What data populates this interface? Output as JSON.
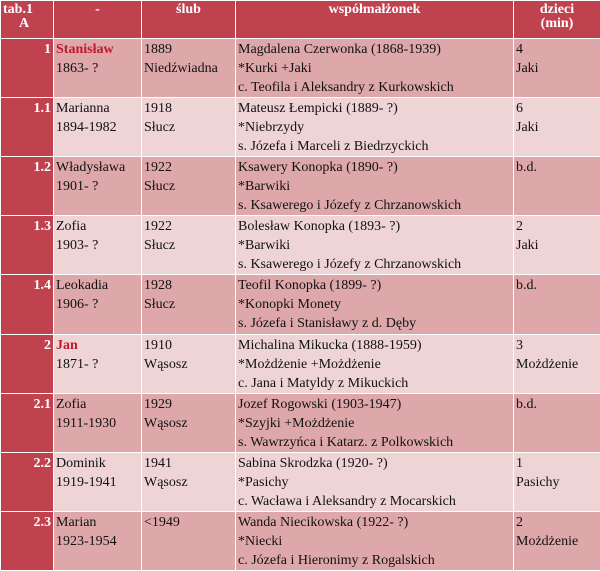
{
  "header": {
    "col0_line1": "tab.1",
    "col0_line2": "A",
    "col1": "-",
    "col2": "ślub",
    "col3": "współmałżonek",
    "col4_line1": "dzieci",
    "col4_line2": "(min)"
  },
  "rows": [
    {
      "num": "1",
      "name": "Stanisław",
      "name_highlight": true,
      "years": "1863- ?",
      "wedding_year": "1889",
      "wedding_place": "Niedźwiadna",
      "spouse_name": "Magdalena Czerwonka (1868-1939)",
      "spouse_places": "*Kurki +Jaki",
      "spouse_parents": "c. Teofila i Aleksandry z Kurkowskich",
      "children_count": "4",
      "children_place": "Jaki"
    },
    {
      "num": "1.1",
      "name": "Marianna",
      "name_highlight": false,
      "years": "1894-1982",
      "wedding_year": "1918",
      "wedding_place": "Słucz",
      "spouse_name": "Mateusz  Łempicki (1889- ?)",
      "spouse_places": "*Niebrzydy",
      "spouse_parents": "s. Józefa i Marceli z Biedrzyckich",
      "children_count": "6",
      "children_place": "Jaki"
    },
    {
      "num": "1.2",
      "name": "Władysława",
      "name_highlight": false,
      "years": "1901- ?",
      "wedding_year": "1922",
      "wedding_place": "Słucz",
      "spouse_name": "Ksawery Konopka (1890- ?)",
      "spouse_places": "*Barwiki",
      "spouse_parents": "s. Ksawerego i Józefy z Chrzanowskich",
      "children_count": "b.d.",
      "children_place": ""
    },
    {
      "num": "1.3",
      "name": "Zofia",
      "name_highlight": false,
      "years": "1903- ?",
      "wedding_year": "1922",
      "wedding_place": "Słucz",
      "spouse_name": "Bolesław Konopka (1893- ?)",
      "spouse_places": "*Barwiki",
      "spouse_parents": "s. Ksawerego i Józefy z Chrzanowskich",
      "children_count": "2",
      "children_place": "Jaki"
    },
    {
      "num": "1.4",
      "name": "Leokadia",
      "name_highlight": false,
      "years": "1906- ?",
      "wedding_year": "1928",
      "wedding_place": "Słucz",
      "spouse_name": "Teofil Konopka (1899- ?)",
      "spouse_places": "*Konopki Monety",
      "spouse_parents": "s. Józefa i Stanisławy z d. Dęby",
      "children_count": "b.d.",
      "children_place": ""
    },
    {
      "num": "2",
      "name": "Jan",
      "name_highlight": true,
      "years": "1871- ?",
      "wedding_year": "1910",
      "wedding_place": "Wąsosz",
      "spouse_name": "Michalina Mikucka (1888-1959)",
      "spouse_places": "*Możdżenie +Możdżenie",
      "spouse_parents": "c. Jana i Matyldy z Mikuckich",
      "children_count": "3",
      "children_place": "Możdżenie"
    },
    {
      "num": "2.1",
      "name": "Zofia",
      "name_highlight": false,
      "years": "1911-1930",
      "wedding_year": "1929",
      "wedding_place": "Wąsosz",
      "spouse_name": "Jozef Rogowski (1903-1947)",
      "spouse_places": "*Szyjki +Możdżenie",
      "spouse_parents": "s. Wawrzyńca i Katarz. z Polkowskich",
      "children_count": "b.d.",
      "children_place": ""
    },
    {
      "num": "2.2",
      "name": "Dominik",
      "name_highlight": false,
      "years": "1919-1941",
      "wedding_year": "1941",
      "wedding_place": "Wąsosz",
      "spouse_name": "Sabina Skrodzka (1920- ?)",
      "spouse_places": "*Pasichy",
      "spouse_parents": "c. Wacława i Aleksandry z Mocarskich",
      "children_count": "1",
      "children_place": "Pasichy"
    },
    {
      "num": "2.3",
      "name": "Marian",
      "name_highlight": false,
      "years": "1923-1954",
      "wedding_year": "<1949",
      "wedding_place": "",
      "spouse_name": "Wanda Niecikowska (1922- ?)",
      "spouse_places": "*Niecki",
      "spouse_parents": "c. Józefa i Hieronimy z Rogalskich",
      "children_count": "2",
      "children_place": "Możdżenie"
    }
  ],
  "colors": {
    "header_bg": "#c0424e",
    "row_odd_bg": "#dea8aa",
    "row_even_bg": "#efd4d5",
    "highlight_text": "#c0192a"
  }
}
